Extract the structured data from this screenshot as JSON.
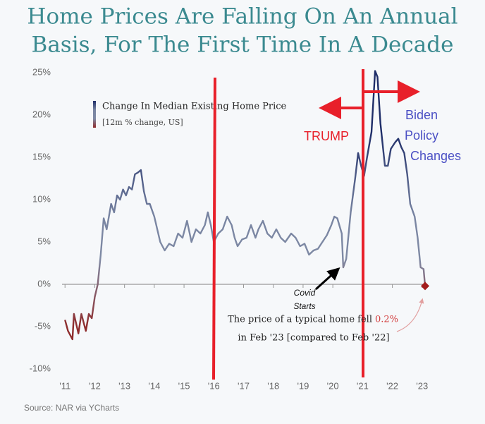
{
  "chart_data": {
    "type": "line",
    "title": [
      "Home Prices Are Falling On An Annual",
      "Basis, For The First Time In A Decade"
    ],
    "source": "Source: NAR via YCharts",
    "x": [
      2011.0,
      2011.1,
      2011.25,
      2011.3,
      2011.45,
      2011.55,
      2011.7,
      2011.8,
      2011.9,
      2012.0,
      2012.1,
      2012.2,
      2012.3,
      2012.4,
      2012.55,
      2012.65,
      2012.75,
      2012.85,
      2012.95,
      2013.05,
      2013.15,
      2013.25,
      2013.35,
      2013.45,
      2013.55,
      2013.65,
      2013.75,
      2013.85,
      2014.0,
      2014.2,
      2014.35,
      2014.5,
      2014.65,
      2014.8,
      2014.95,
      2015.1,
      2015.25,
      2015.4,
      2015.55,
      2015.7,
      2015.8,
      2015.9,
      2016.0,
      2016.15,
      2016.3,
      2016.45,
      2016.6,
      2016.7,
      2016.8,
      2016.95,
      2017.1,
      2017.25,
      2017.4,
      2017.5,
      2017.65,
      2017.8,
      2017.95,
      2018.1,
      2018.25,
      2018.4,
      2018.6,
      2018.75,
      2018.9,
      2019.05,
      2019.2,
      2019.35,
      2019.5,
      2019.65,
      2019.8,
      2019.95,
      2020.05,
      2020.15,
      2020.3,
      2020.35,
      2020.45,
      2020.6,
      2020.75,
      2020.85,
      2020.95,
      2021.05,
      2021.15,
      2021.3,
      2021.42,
      2021.5,
      2021.6,
      2021.75,
      2021.85,
      2021.95,
      2022.1,
      2022.2,
      2022.3,
      2022.4,
      2022.5,
      2022.6,
      2022.75,
      2022.85,
      2022.95,
      2023.05,
      2023.1
    ],
    "series": [
      {
        "name": "Change In Median Existing Home Price",
        "unit_label": "[12m % change, US]",
        "values": [
          -4.2,
          -5.5,
          -6.5,
          -3.5,
          -5.8,
          -3.5,
          -5.5,
          -3.5,
          -4.0,
          -1.5,
          0,
          3.5,
          7.8,
          6.5,
          9.5,
          8.5,
          10.5,
          10.0,
          11.2,
          10.5,
          11.5,
          11.2,
          13.0,
          13.2,
          13.5,
          11.0,
          9.5,
          9.5,
          8.0,
          5.0,
          4.0,
          4.8,
          4.5,
          6.0,
          5.5,
          7.5,
          5.0,
          6.5,
          6.0,
          7.0,
          8.5,
          7.0,
          5.0,
          6.0,
          6.5,
          8.0,
          7.0,
          5.5,
          4.5,
          5.3,
          5.5,
          7.0,
          5.5,
          6.5,
          7.5,
          6.0,
          5.5,
          6.5,
          5.5,
          5.0,
          6.0,
          5.5,
          4.5,
          4.8,
          3.5,
          4.0,
          4.2,
          5.0,
          5.8,
          7.0,
          8.0,
          7.8,
          6.0,
          2.0,
          3.0,
          8.5,
          12.5,
          15.5,
          14.0,
          12.8,
          15.0,
          18.0,
          25.2,
          24.5,
          19.0,
          14.0,
          14.0,
          16.0,
          16.8,
          17.2,
          16.2,
          15.5,
          13.0,
          9.5,
          8.0,
          5.5,
          2.0,
          1.8,
          -0.2
        ]
      }
    ],
    "line_gradient": [
      {
        "value": -5,
        "color": "#8e2c2c"
      },
      {
        "value": 3,
        "color": "#7f8aa4"
      },
      {
        "value": 8,
        "color": "#7985a2"
      },
      {
        "value": 18,
        "color": "#1e2d68"
      }
    ],
    "marker_color": "#a31c1c",
    "xlim": [
      2010.9,
      2023.1
    ],
    "xticks": [
      {
        "value": 2011,
        "label": "'11"
      },
      {
        "value": 2012,
        "label": "'12"
      },
      {
        "value": 2013,
        "label": "'13"
      },
      {
        "value": 2014,
        "label": "'14"
      },
      {
        "value": 2015,
        "label": "'15"
      },
      {
        "value": 2016,
        "label": "'16"
      },
      {
        "value": 2017,
        "label": "'17"
      },
      {
        "value": 2018,
        "label": "'18"
      },
      {
        "value": 2019,
        "label": "'19"
      },
      {
        "value": 2020,
        "label": "'20"
      },
      {
        "value": 2021,
        "label": "'21"
      },
      {
        "value": 2022,
        "label": "'22"
      },
      {
        "value": 2023,
        "label": "'23"
      }
    ],
    "ylim": [
      -10,
      25
    ],
    "yticks": [
      {
        "value": -10,
        "label": "-10%"
      },
      {
        "value": -5,
        "label": "-5%"
      },
      {
        "value": 0,
        "label": "0%"
      },
      {
        "value": 5,
        "label": "5%"
      },
      {
        "value": 10,
        "label": "10%"
      },
      {
        "value": 15,
        "label": "15%"
      },
      {
        "value": 20,
        "label": "20%"
      },
      {
        "value": 25,
        "label": "25%"
      }
    ],
    "annotations": {
      "trump": "TRUMP",
      "biden": [
        "Biden",
        "Policy",
        "Changes"
      ],
      "covid": [
        "Covid",
        "Starts"
      ],
      "note": [
        "The price of a typical home fell",
        "0.2%",
        "in Feb '23 [compared to Feb '22]"
      ]
    }
  }
}
